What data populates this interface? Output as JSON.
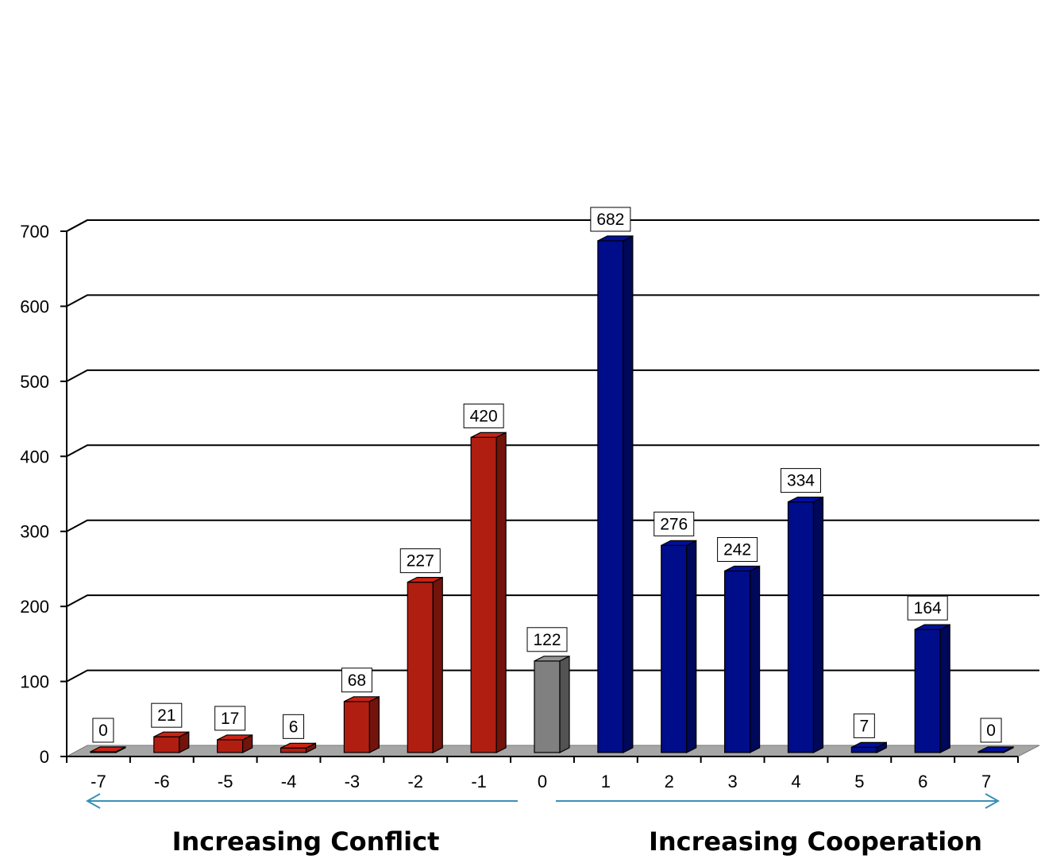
{
  "chart_data": {
    "type": "bar",
    "categories": [
      "-7",
      "-6",
      "-5",
      "-4",
      "-3",
      "-2",
      "-1",
      "0",
      "1",
      "2",
      "3",
      "4",
      "5",
      "6",
      "7"
    ],
    "values": [
      0,
      21,
      17,
      6,
      68,
      227,
      420,
      122,
      682,
      276,
      242,
      334,
      7,
      164,
      0
    ],
    "data_labels": [
      "0",
      "21",
      "17",
      "6",
      "68",
      "227",
      "420",
      "122",
      "682",
      "276",
      "242",
      "334",
      "7",
      "164",
      "0"
    ],
    "y_ticks": [
      "0",
      "100",
      "200",
      "300",
      "400",
      "500",
      "600",
      "700"
    ],
    "ylim": [
      0,
      700
    ],
    "grid": true,
    "three_d": true,
    "colors": {
      "conflict": "#b01e12",
      "neutral": "#808080",
      "cooperation": "#000d8a",
      "floor": "#a6a6a6",
      "arrow": "#3a90b8"
    },
    "annotations": {
      "conflict": "Increasing Conflict",
      "cooperation": "Increasing Cooperation"
    }
  }
}
